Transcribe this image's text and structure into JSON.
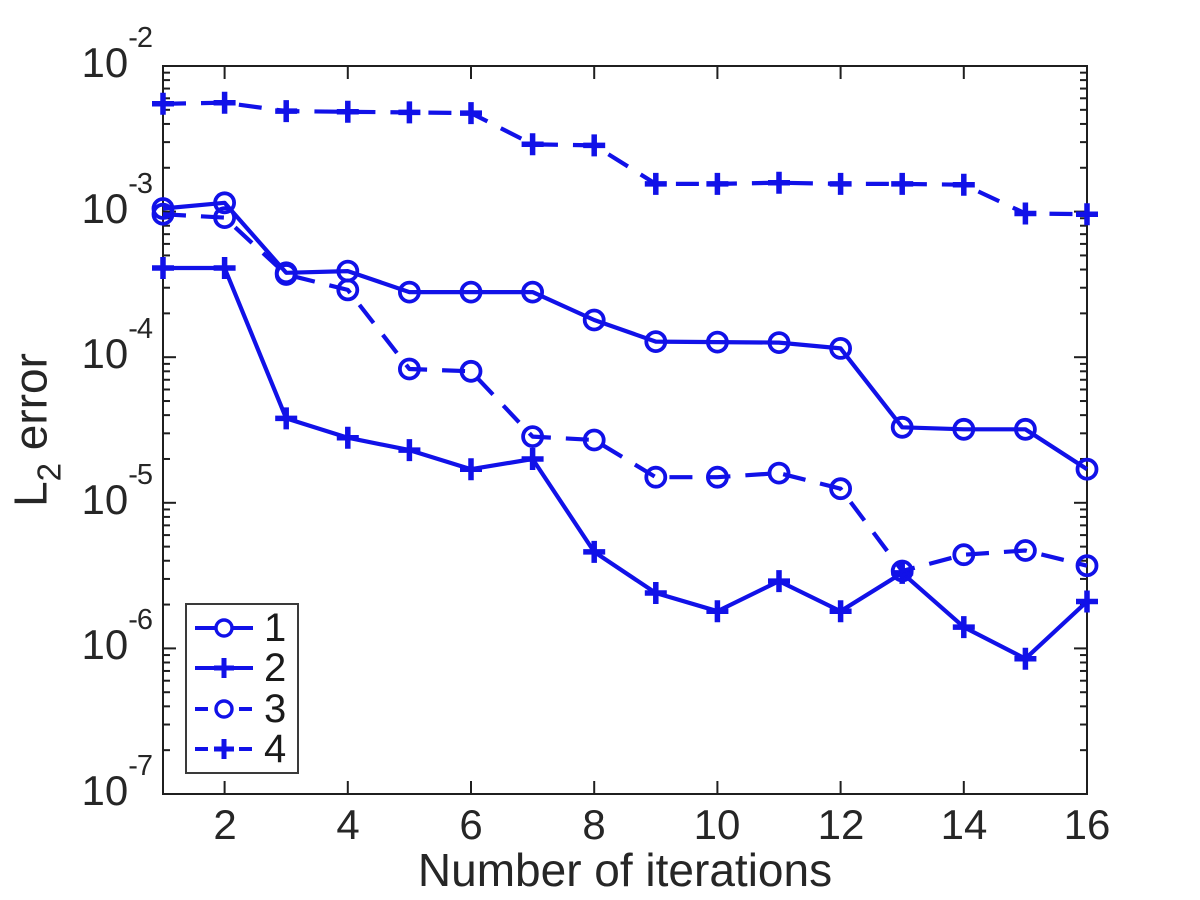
{
  "figure": {
    "background": "#ffffff",
    "axis_color": "#1f1f1f",
    "tick_label_color": "#262626",
    "series_color": "#1111e8",
    "legend_border_color": "#3a3a3a"
  },
  "chart_data": {
    "type": "line",
    "title": "",
    "xlabel": "Number of iterations",
    "ylabel_parts": {
      "main": "L",
      "sub": "2",
      "rest": " error"
    },
    "yscale": "log",
    "xlim": [
      1,
      16
    ],
    "ylim": [
      1e-07,
      0.01
    ],
    "xticks": [
      2,
      4,
      6,
      8,
      10,
      12,
      14,
      16
    ],
    "ytick_exponents": [
      -2,
      -3,
      -4,
      -5,
      -6,
      -7
    ],
    "grid": "off",
    "legend_position": "bottom-left-inside",
    "x": [
      1,
      2,
      3,
      4,
      5,
      6,
      7,
      8,
      9,
      10,
      11,
      12,
      13,
      14,
      15,
      16
    ],
    "series": [
      {
        "name": "1",
        "line": "solid",
        "marker": "circle",
        "values": [
          0.00105,
          0.00115,
          0.00038,
          0.00039,
          0.00028,
          0.00028,
          0.00028,
          0.00018,
          0.000128,
          0.000127,
          0.000126,
          0.000115,
          3.3e-05,
          3.2e-05,
          3.2e-05,
          1.7e-05
        ]
      },
      {
        "name": "2",
        "line": "solid",
        "marker": "plus",
        "values": [
          0.00041,
          0.00041,
          3.8e-05,
          2.8e-05,
          2.3e-05,
          1.7e-05,
          2e-05,
          4.6e-06,
          2.4e-06,
          1.8e-06,
          2.9e-06,
          1.8e-06,
          3.3e-06,
          1.4e-06,
          8.5e-07,
          2.1e-06
        ]
      },
      {
        "name": "3",
        "line": "dashed",
        "marker": "circle",
        "values": [
          0.00096,
          0.00091,
          0.00037,
          0.00029,
          8.3e-05,
          8e-05,
          2.85e-05,
          2.7e-05,
          1.5e-05,
          1.5e-05,
          1.6e-05,
          1.25e-05,
          3.4e-06,
          4.4e-06,
          4.7e-06,
          3.7e-06
        ]
      },
      {
        "name": "4",
        "line": "dashed",
        "marker": "plus",
        "values": [
          0.0055,
          0.0056,
          0.0049,
          0.00485,
          0.0048,
          0.00475,
          0.0029,
          0.00285,
          0.00155,
          0.00155,
          0.00158,
          0.00155,
          0.00155,
          0.00153,
          0.00097,
          0.00096
        ]
      }
    ]
  }
}
